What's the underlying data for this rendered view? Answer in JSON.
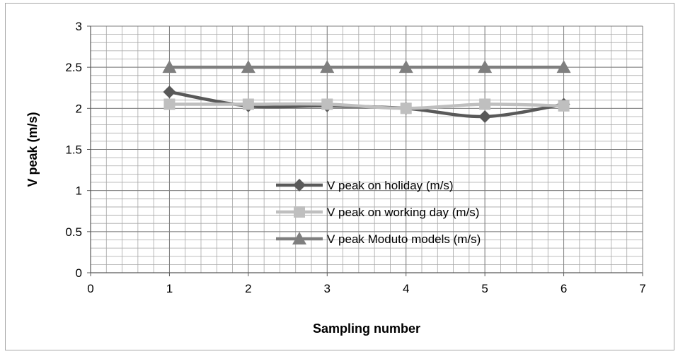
{
  "chart_data": {
    "type": "line",
    "title": "",
    "xlabel": "Sampling number",
    "ylabel": "V peak (m/s)",
    "xlim": [
      0,
      7
    ],
    "ylim": [
      0,
      3
    ],
    "x_ticks": [
      "0",
      "1",
      "2",
      "3",
      "4",
      "5",
      "6",
      "7"
    ],
    "y_ticks": [
      "0",
      "0.5",
      "1",
      "1.5",
      "2",
      "2.5",
      "3"
    ],
    "grid": true,
    "legend_position": "center-right",
    "series": [
      {
        "name": "V peak on holiday (m/s)",
        "x": [
          1,
          2,
          3,
          4,
          5,
          6
        ],
        "values": [
          2.2,
          2.03,
          2.03,
          2.0,
          1.9,
          2.05
        ],
        "color": "#595959",
        "marker": "diamond"
      },
      {
        "name": "V peak on working day (m/s)",
        "x": [
          1,
          2,
          3,
          4,
          5,
          6
        ],
        "values": [
          2.05,
          2.05,
          2.05,
          2.0,
          2.05,
          2.03
        ],
        "color": "#bfbfbf",
        "marker": "square"
      },
      {
        "name": "V peak Moduto models (m/s)",
        "x": [
          1,
          2,
          3,
          4,
          5,
          6
        ],
        "values": [
          2.5,
          2.5,
          2.5,
          2.5,
          2.5,
          2.5
        ],
        "color": "#7f7f7f",
        "marker": "triangle"
      }
    ]
  }
}
